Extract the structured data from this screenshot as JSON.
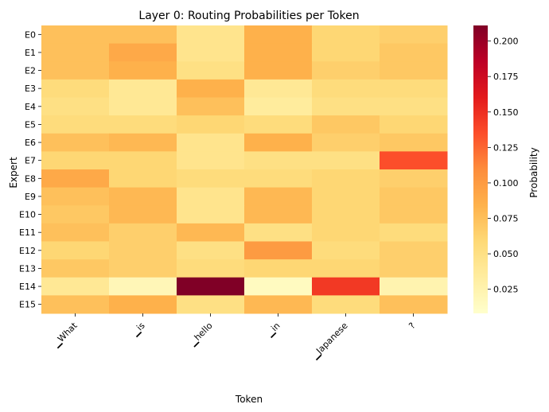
{
  "chart_data": {
    "type": "heatmap",
    "title": "Layer 0: Routing Probabilities per Token",
    "xlabel": "Token",
    "ylabel": "Expert",
    "colorbar_label": "Probability",
    "colormap": "YlOrRd",
    "vmin": 0.008,
    "vmax": 0.211,
    "colorbar_ticks": [
      "0.025",
      "0.050",
      "0.075",
      "0.100",
      "0.125",
      "0.150",
      "0.175",
      "0.200"
    ],
    "tokens": [
      "▁What",
      "▁is",
      "▁hello",
      "▁in",
      "▁Japanese",
      "?"
    ],
    "experts": [
      "E0",
      "E1",
      "E2",
      "E3",
      "E4",
      "E5",
      "E6",
      "E7",
      "E8",
      "E9",
      "E10",
      "E11",
      "E12",
      "E13",
      "E14",
      "E15"
    ],
    "values": [
      [
        0.075,
        0.075,
        0.045,
        0.085,
        0.06,
        0.065
      ],
      [
        0.075,
        0.09,
        0.045,
        0.085,
        0.06,
        0.07
      ],
      [
        0.075,
        0.085,
        0.05,
        0.085,
        0.065,
        0.07
      ],
      [
        0.055,
        0.04,
        0.085,
        0.04,
        0.055,
        0.055
      ],
      [
        0.05,
        0.04,
        0.075,
        0.035,
        0.05,
        0.05
      ],
      [
        0.055,
        0.055,
        0.06,
        0.055,
        0.07,
        0.06
      ],
      [
        0.075,
        0.08,
        0.045,
        0.085,
        0.065,
        0.07
      ],
      [
        0.06,
        0.06,
        0.045,
        0.05,
        0.05,
        0.135
      ],
      [
        0.09,
        0.06,
        0.055,
        0.055,
        0.06,
        0.065
      ],
      [
        0.075,
        0.08,
        0.045,
        0.08,
        0.06,
        0.07
      ],
      [
        0.07,
        0.08,
        0.045,
        0.08,
        0.06,
        0.07
      ],
      [
        0.075,
        0.065,
        0.08,
        0.05,
        0.06,
        0.055
      ],
      [
        0.06,
        0.065,
        0.05,
        0.1,
        0.055,
        0.065
      ],
      [
        0.07,
        0.065,
        0.055,
        0.06,
        0.06,
        0.065
      ],
      [
        0.04,
        0.02,
        0.211,
        0.015,
        0.145,
        0.025
      ],
      [
        0.075,
        0.085,
        0.05,
        0.08,
        0.055,
        0.075
      ]
    ]
  }
}
